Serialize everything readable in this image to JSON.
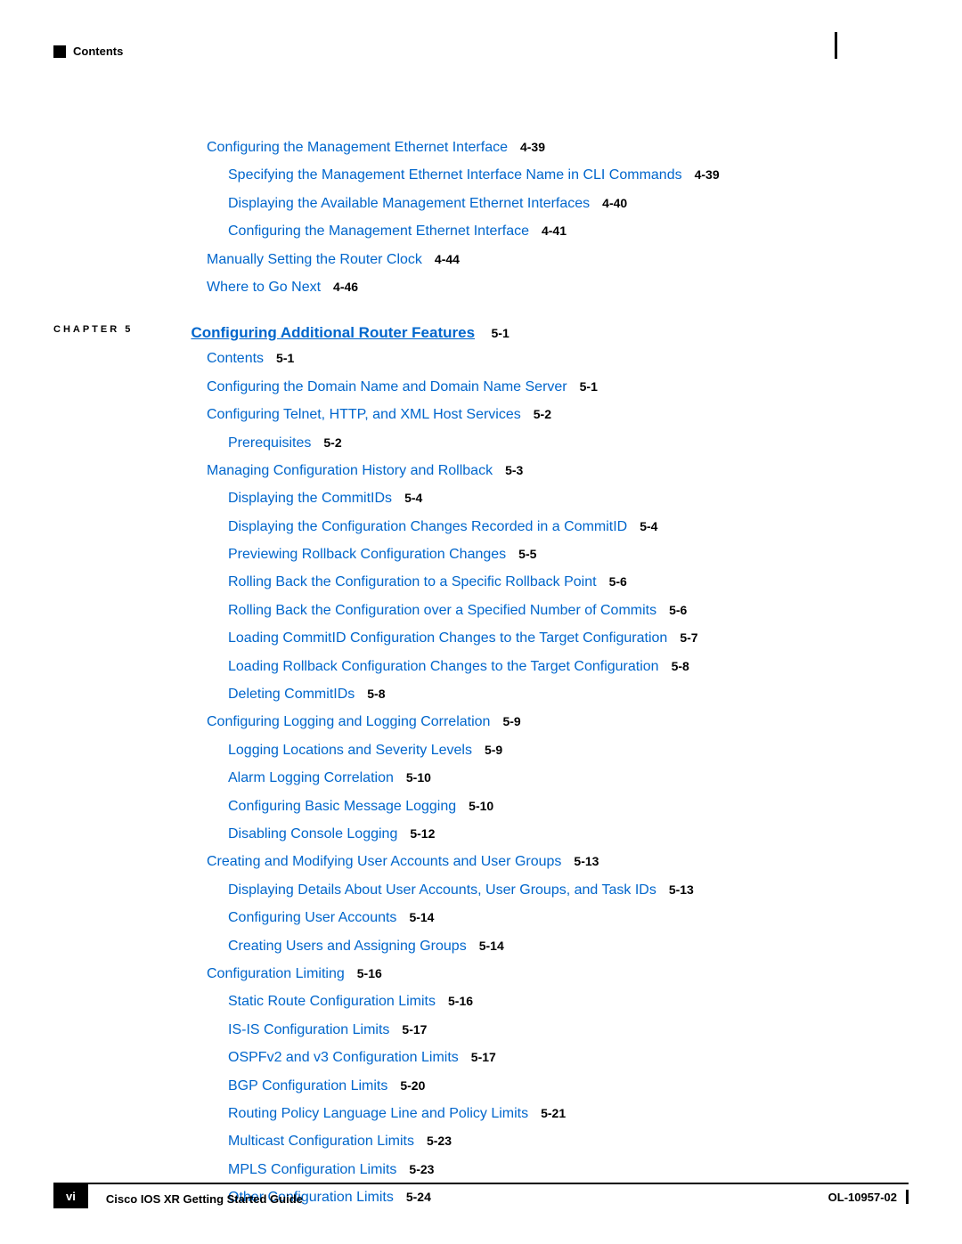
{
  "header": {
    "label": "Contents"
  },
  "section4_items": [
    {
      "text": "Configuring the Management Ethernet Interface",
      "ref": "4-39",
      "indent": 0
    },
    {
      "text": "Specifying the Management Ethernet Interface Name in CLI Commands",
      "ref": "4-39",
      "indent": 1
    },
    {
      "text": "Displaying the Available Management Ethernet Interfaces",
      "ref": "4-40",
      "indent": 1
    },
    {
      "text": "Configuring the Management Ethernet Interface",
      "ref": "4-41",
      "indent": 1
    },
    {
      "text": "Manually Setting the Router Clock",
      "ref": "4-44",
      "indent": 0
    },
    {
      "text": "Where to Go Next",
      "ref": "4-46",
      "indent": 0
    }
  ],
  "chapter": {
    "label": "CHAPTER 5",
    "title": "Configuring Additional Router Features",
    "ref": "5-1"
  },
  "section5_items": [
    {
      "text": "Contents",
      "ref": "5-1",
      "indent": 0
    },
    {
      "text": "Configuring the Domain Name and Domain Name Server",
      "ref": "5-1",
      "indent": 0,
      "gap": true
    },
    {
      "text": "Configuring Telnet, HTTP, and XML Host Services",
      "ref": "5-2",
      "indent": 0,
      "gap": true
    },
    {
      "text": "Prerequisites",
      "ref": "5-2",
      "indent": 1
    },
    {
      "text": "Managing Configuration History and Rollback",
      "ref": "5-3",
      "indent": 0,
      "gap": true
    },
    {
      "text": "Displaying the CommitIDs",
      "ref": "5-4",
      "indent": 1
    },
    {
      "text": "Displaying the Configuration Changes Recorded in a CommitID",
      "ref": "5-4",
      "indent": 1
    },
    {
      "text": "Previewing Rollback Configuration Changes",
      "ref": "5-5",
      "indent": 1
    },
    {
      "text": "Rolling Back the Configuration to a Specific Rollback Point",
      "ref": "5-6",
      "indent": 1
    },
    {
      "text": "Rolling Back the Configuration over a Specified Number of Commits",
      "ref": "5-6",
      "indent": 1
    },
    {
      "text": "Loading CommitID Configuration Changes to the Target Configuration",
      "ref": "5-7",
      "indent": 1
    },
    {
      "text": "Loading Rollback Configuration Changes to the Target Configuration",
      "ref": "5-8",
      "indent": 1
    },
    {
      "text": "Deleting CommitIDs",
      "ref": "5-8",
      "indent": 1
    },
    {
      "text": "Configuring Logging and Logging Correlation",
      "ref": "5-9",
      "indent": 0,
      "gap": true
    },
    {
      "text": "Logging Locations and Severity Levels",
      "ref": "5-9",
      "indent": 1
    },
    {
      "text": "Alarm Logging Correlation",
      "ref": "5-10",
      "indent": 1
    },
    {
      "text": "Configuring Basic Message Logging",
      "ref": "5-10",
      "indent": 1
    },
    {
      "text": "Disabling Console Logging",
      "ref": "5-12",
      "indent": 1
    },
    {
      "text": "Creating and Modifying User Accounts and User Groups",
      "ref": "5-13",
      "indent": 0,
      "gap": true
    },
    {
      "text": "Displaying Details About User Accounts, User Groups, and Task IDs",
      "ref": "5-13",
      "indent": 1
    },
    {
      "text": "Configuring User Accounts",
      "ref": "5-14",
      "indent": 1
    },
    {
      "text": "Creating Users and Assigning Groups",
      "ref": "5-14",
      "indent": 1
    },
    {
      "text": "Configuration Limiting",
      "ref": "5-16",
      "indent": 0,
      "gap": true
    },
    {
      "text": "Static Route Configuration Limits",
      "ref": "5-16",
      "indent": 1
    },
    {
      "text": "IS-IS Configuration Limits",
      "ref": "5-17",
      "indent": 1
    },
    {
      "text": "OSPFv2 and v3 Configuration Limits",
      "ref": "5-17",
      "indent": 1
    },
    {
      "text": "BGP Configuration Limits",
      "ref": "5-20",
      "indent": 1
    },
    {
      "text": "Routing Policy Language Line and Policy Limits",
      "ref": "5-21",
      "indent": 1
    },
    {
      "text": "Multicast Configuration Limits",
      "ref": "5-23",
      "indent": 1
    },
    {
      "text": "MPLS Configuration Limits",
      "ref": "5-23",
      "indent": 1
    },
    {
      "text": "Other Configuration Limits",
      "ref": "5-24",
      "indent": 1
    }
  ],
  "footer": {
    "page_num": "vi",
    "guide_title": "Cisco IOS XR Getting Started Guide",
    "doc_id": "OL-10957-02"
  },
  "colors": {
    "link": "#0066cc",
    "text": "#000000",
    "background": "#ffffff"
  }
}
